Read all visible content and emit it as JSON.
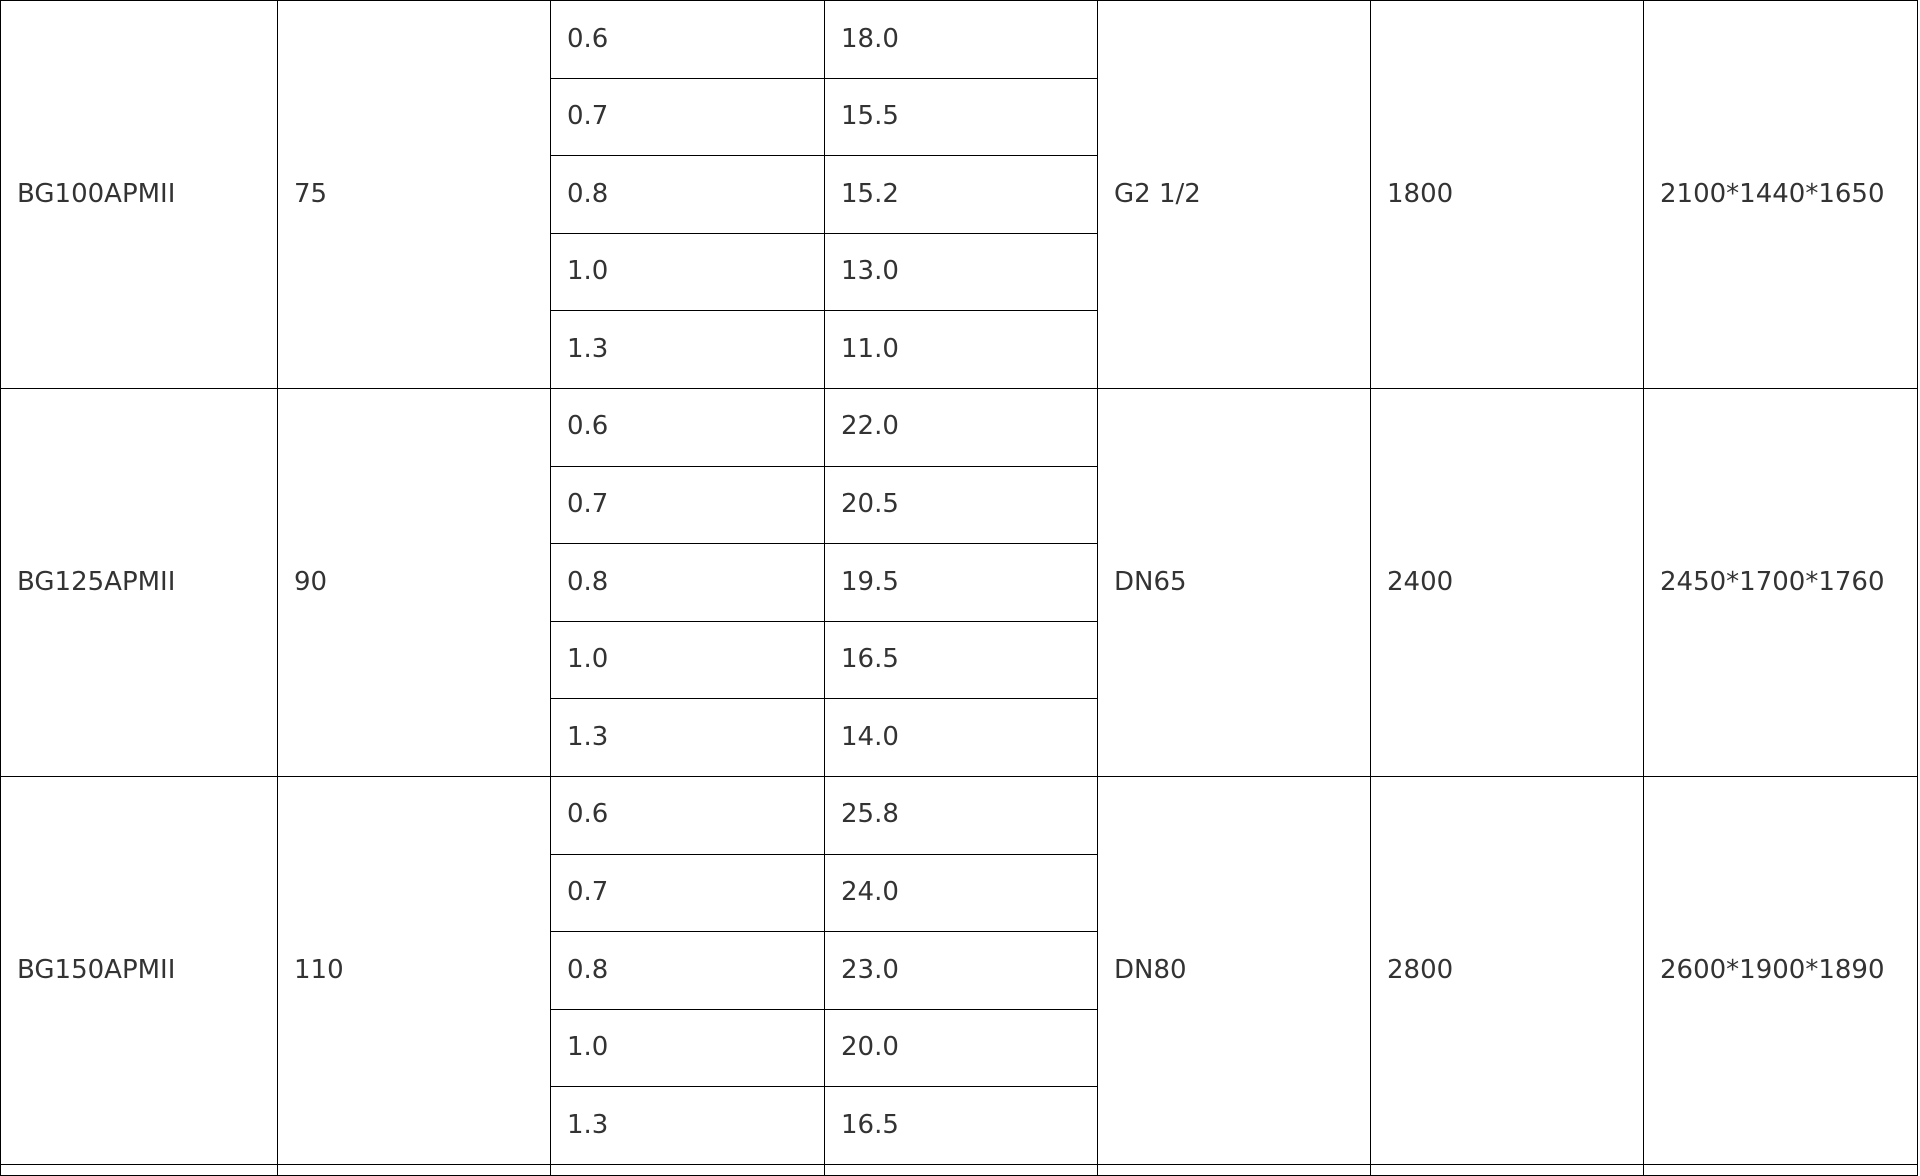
{
  "rows": [
    {
      "model": "BG100APMII",
      "power": "75",
      "pressure": [
        "0.6",
        "0.7",
        "0.8",
        "1.0",
        "1.3"
      ],
      "flow": [
        "18.0",
        "15.5",
        "15.2",
        "13.0",
        "11.0"
      ],
      "outlet": "G2 1/2",
      "weight": "1800",
      "dimensions": "2100*1440*1650"
    },
    {
      "model": "BG125APMII",
      "power": "90",
      "pressure": [
        "0.6",
        "0.7",
        "0.8",
        "1.0",
        "1.3"
      ],
      "flow": [
        "22.0",
        "20.5",
        "19.5",
        "16.5",
        "14.0"
      ],
      "outlet": "DN65",
      "weight": "2400",
      "dimensions": "2450*1700*1760"
    },
    {
      "model": "BG150APMII",
      "power": "110",
      "pressure": [
        "0.6",
        "0.7",
        "0.8",
        "1.0",
        "1.3"
      ],
      "flow": [
        "25.8",
        "24.0",
        "23.0",
        "20.0",
        "16.5"
      ],
      "outlet": "DN80",
      "weight": "2800",
      "dimensions": "2600*1900*1890"
    }
  ]
}
